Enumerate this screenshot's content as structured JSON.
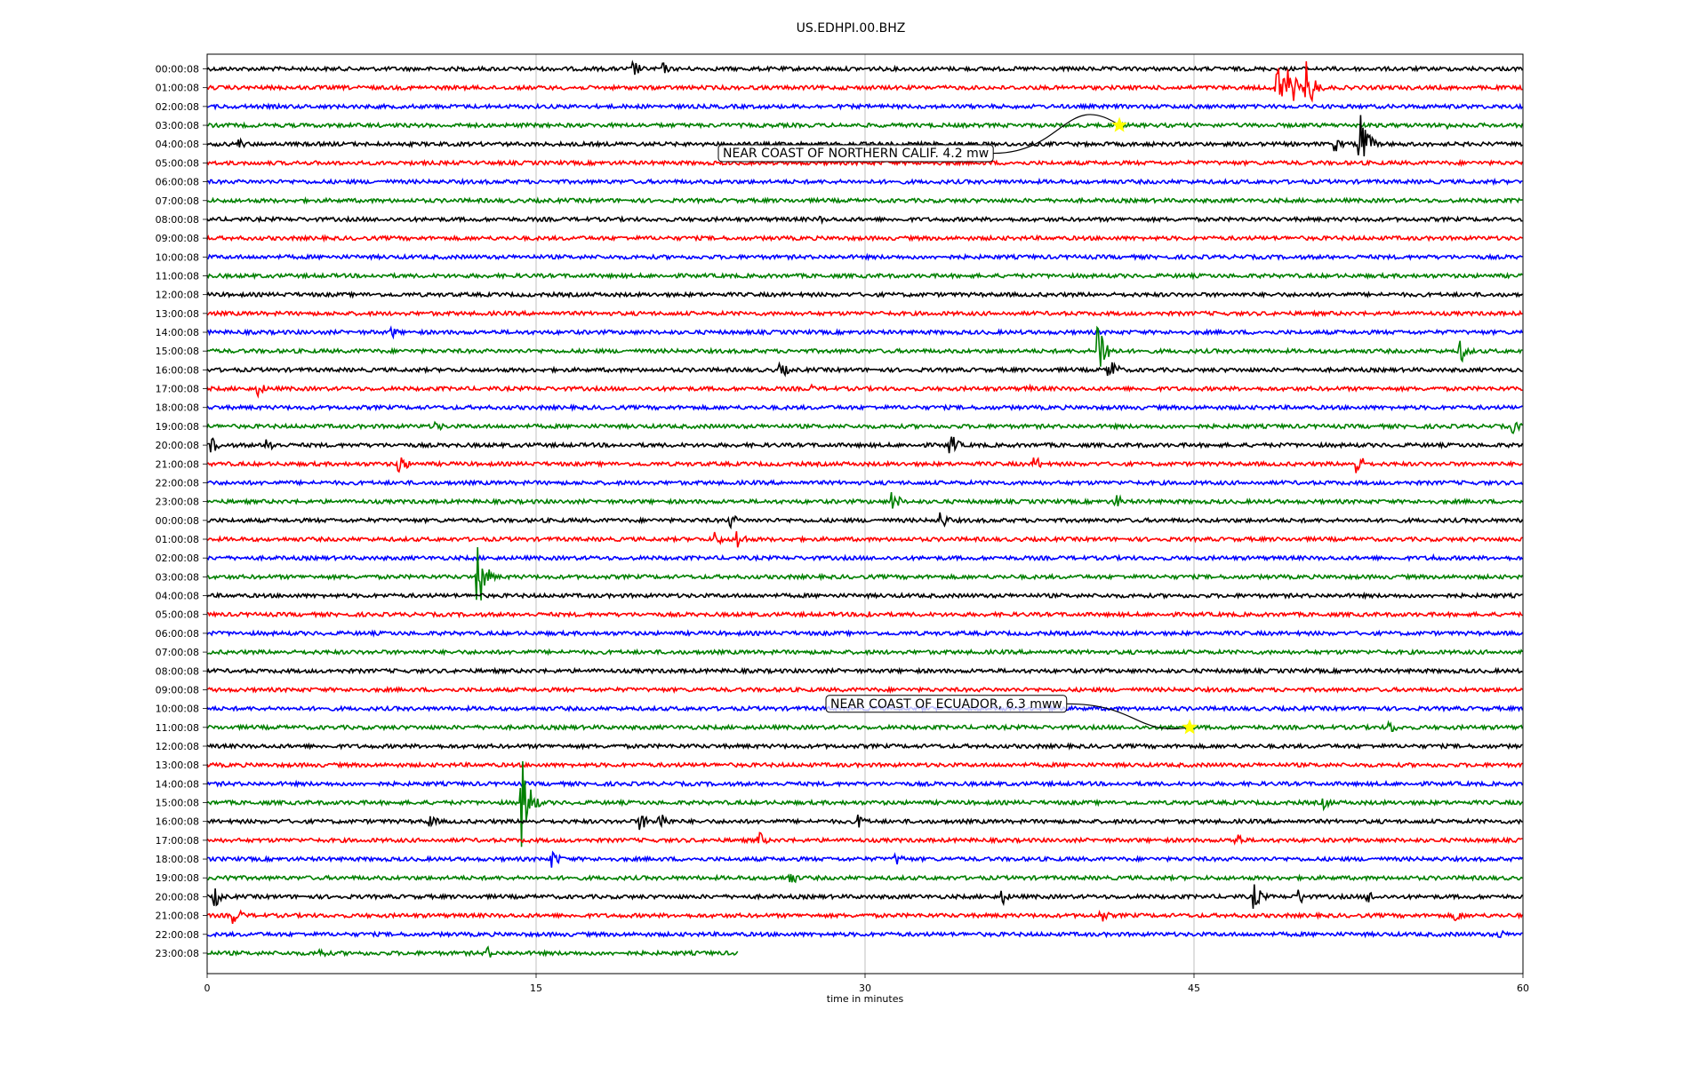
{
  "chart_data": {
    "type": "line",
    "title": "US.EDHPI.00.BHZ",
    "xlabel": "time in minutes",
    "ylabel": "",
    "xlim": [
      0,
      60
    ],
    "xticks": [
      0,
      15,
      30,
      45,
      60
    ],
    "xtick_labels": [
      "0",
      "15",
      "30",
      "45",
      "60"
    ],
    "grid": "vertical",
    "trace_colors": [
      "#000000",
      "#ff0000",
      "#0000ff",
      "#008000"
    ],
    "row_labels": [
      "00:00:08",
      "01:00:08",
      "02:00:08",
      "03:00:08",
      "04:00:08",
      "05:00:08",
      "06:00:08",
      "07:00:08",
      "08:00:08",
      "09:00:08",
      "10:00:08",
      "11:00:08",
      "12:00:08",
      "13:00:08",
      "14:00:08",
      "15:00:08",
      "16:00:08",
      "17:00:08",
      "18:00:08",
      "19:00:08",
      "20:00:08",
      "21:00:08",
      "22:00:08",
      "23:00:08",
      "00:00:08",
      "01:00:08",
      "02:00:08",
      "03:00:08",
      "04:00:08",
      "05:00:08",
      "06:00:08",
      "07:00:08",
      "08:00:08",
      "09:00:08",
      "10:00:08",
      "11:00:08",
      "12:00:08",
      "13:00:08",
      "14:00:08",
      "15:00:08",
      "16:00:08",
      "17:00:08",
      "18:00:08",
      "19:00:08",
      "20:00:08",
      "21:00:08",
      "22:00:08",
      "23:00:08"
    ],
    "last_row_end_minute": 24.2,
    "events": [
      {
        "row": 0,
        "x": 19.5,
        "amp": 0.45
      },
      {
        "row": 0,
        "x": 20.8,
        "amp": 0.35
      },
      {
        "row": 1,
        "x": 48.8,
        "amp": 1.6
      },
      {
        "row": 1,
        "x": 49.4,
        "amp": 1.1
      },
      {
        "row": 1,
        "x": 50.2,
        "amp": 1.4
      },
      {
        "row": 3,
        "x": 56.5,
        "amp": 0.25
      },
      {
        "row": 4,
        "x": 1.5,
        "amp": 0.3
      },
      {
        "row": 4,
        "x": 51.5,
        "amp": 0.4
      },
      {
        "row": 4,
        "x": 52.6,
        "amp": 1.9
      },
      {
        "row": 8,
        "x": 28.0,
        "amp": 0.2
      },
      {
        "row": 14,
        "x": 8.5,
        "amp": 0.3
      },
      {
        "row": 15,
        "x": 40.7,
        "amp": 1.8
      },
      {
        "row": 15,
        "x": 57.2,
        "amp": 0.6
      },
      {
        "row": 16,
        "x": 26.2,
        "amp": 0.45
      },
      {
        "row": 16,
        "x": 41.2,
        "amp": 0.7
      },
      {
        "row": 17,
        "x": 2.4,
        "amp": 0.4
      },
      {
        "row": 17,
        "x": 27.5,
        "amp": 0.25
      },
      {
        "row": 17,
        "x": 37.5,
        "amp": 0.2
      },
      {
        "row": 19,
        "x": 10.5,
        "amp": 0.3
      },
      {
        "row": 19,
        "x": 59.6,
        "amp": 0.4
      },
      {
        "row": 20,
        "x": 0.3,
        "amp": 0.4
      },
      {
        "row": 20,
        "x": 2.8,
        "amp": 0.5
      },
      {
        "row": 20,
        "x": 33.9,
        "amp": 0.7
      },
      {
        "row": 21,
        "x": 8.8,
        "amp": 0.6
      },
      {
        "row": 21,
        "x": 37.8,
        "amp": 0.4
      },
      {
        "row": 21,
        "x": 52.5,
        "amp": 0.6
      },
      {
        "row": 23,
        "x": 31.3,
        "amp": 0.6
      },
      {
        "row": 23,
        "x": 41.5,
        "amp": 0.4
      },
      {
        "row": 24,
        "x": 23.9,
        "amp": 0.4
      },
      {
        "row": 24,
        "x": 33.5,
        "amp": 0.5
      },
      {
        "row": 25,
        "x": 23.2,
        "amp": 0.45
      },
      {
        "row": 25,
        "x": 24.2,
        "amp": 0.6
      },
      {
        "row": 26,
        "x": 56.0,
        "amp": 0.2
      },
      {
        "row": 27,
        "x": 12.4,
        "amp": 1.7
      },
      {
        "row": 29,
        "x": 30.1,
        "amp": 0.3
      },
      {
        "row": 35,
        "x": 54.0,
        "amp": 0.35
      },
      {
        "row": 39,
        "x": 14.4,
        "amp": 2.4
      },
      {
        "row": 39,
        "x": 51.0,
        "amp": 0.35
      },
      {
        "row": 40,
        "x": 10.2,
        "amp": 0.4
      },
      {
        "row": 40,
        "x": 19.8,
        "amp": 0.5
      },
      {
        "row": 40,
        "x": 20.7,
        "amp": 0.6
      },
      {
        "row": 40,
        "x": 29.8,
        "amp": 0.4
      },
      {
        "row": 41,
        "x": 25.2,
        "amp": 0.45
      },
      {
        "row": 41,
        "x": 47.0,
        "amp": 0.4
      },
      {
        "row": 42,
        "x": 15.8,
        "amp": 0.5
      },
      {
        "row": 42,
        "x": 31.5,
        "amp": 0.35
      },
      {
        "row": 43,
        "x": 0.8,
        "amp": 0.35
      },
      {
        "row": 43,
        "x": 26.6,
        "amp": 0.45
      },
      {
        "row": 44,
        "x": 0.4,
        "amp": 0.5
      },
      {
        "row": 44,
        "x": 36.3,
        "amp": 0.4
      },
      {
        "row": 44,
        "x": 47.8,
        "amp": 0.7
      },
      {
        "row": 44,
        "x": 49.8,
        "amp": 0.5
      },
      {
        "row": 44,
        "x": 53.0,
        "amp": 0.35
      },
      {
        "row": 45,
        "x": 1.3,
        "amp": 0.5
      },
      {
        "row": 45,
        "x": 40.8,
        "amp": 0.4
      },
      {
        "row": 45,
        "x": 57.0,
        "amp": 0.35
      },
      {
        "row": 46,
        "x": 59.0,
        "amp": 0.25
      },
      {
        "row": 47,
        "x": 5.2,
        "amp": 0.3
      },
      {
        "row": 47,
        "x": 12.8,
        "amp": 0.35
      }
    ],
    "annotations": [
      {
        "text": "NEAR COAST OF NORTHERN CALIF. 4.2 mw",
        "row": 3,
        "x": 41.6,
        "marker": "star",
        "marker_color": "#ffff00"
      },
      {
        "text": "NEAR COAST OF ECUADOR, 6.3 mww",
        "row": 35,
        "x": 44.8,
        "marker": "star",
        "marker_color": "#ffff00"
      }
    ]
  }
}
